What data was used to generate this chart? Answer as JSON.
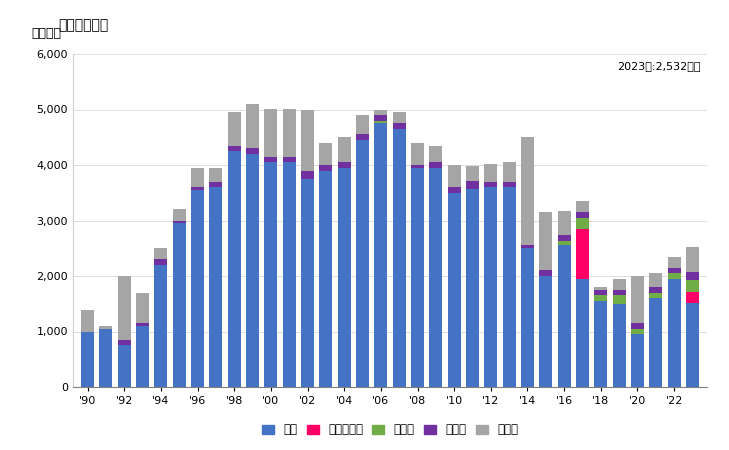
{
  "title": "輸入量の推移",
  "ylabel": "単位トン",
  "annotation": "2023年:2,532トン",
  "ylim": [
    0,
    6000
  ],
  "yticks": [
    0,
    1000,
    2000,
    3000,
    4000,
    5000,
    6000
  ],
  "years": [
    1990,
    1991,
    1992,
    1993,
    1994,
    1995,
    1996,
    1997,
    1998,
    1999,
    2000,
    2001,
    2002,
    2003,
    2004,
    2005,
    2006,
    2007,
    2008,
    2009,
    2010,
    2011,
    2012,
    2013,
    2014,
    2015,
    2016,
    2017,
    2018,
    2019,
    2020,
    2021,
    2022,
    2023
  ],
  "xtick_labels": [
    "'90",
    "'92",
    "'94",
    "'96",
    "'98",
    "'00",
    "'02",
    "'04",
    "'06",
    "'08",
    "'10",
    "'12",
    "'14",
    "'16",
    "'18",
    "'20",
    "'22"
  ],
  "xtick_positions": [
    1990,
    1992,
    1994,
    1996,
    1998,
    2000,
    2002,
    2004,
    2006,
    2008,
    2010,
    2012,
    2014,
    2016,
    2018,
    2020,
    2022
  ],
  "series": {
    "米国": [
      1000,
      1050,
      750,
      1100,
      2200,
      2950,
      3550,
      3600,
      4250,
      4200,
      4050,
      4050,
      3750,
      3900,
      3950,
      4450,
      4750,
      4650,
      3950,
      3950,
      3500,
      3560,
      3600,
      3600,
      2500,
      2000,
      2550,
      1950,
      1550,
      1500,
      950,
      1600,
      1950,
      1520
    ],
    "クウェート": [
      0,
      0,
      0,
      0,
      0,
      0,
      0,
      0,
      0,
      0,
      0,
      0,
      0,
      0,
      0,
      0,
      0,
      0,
      0,
      0,
      0,
      0,
      0,
      0,
      0,
      0,
      0,
      900,
      0,
      0,
      0,
      0,
      0,
      200
    ],
    "インド": [
      0,
      0,
      0,
      0,
      0,
      0,
      0,
      0,
      0,
      0,
      0,
      0,
      0,
      0,
      0,
      0,
      50,
      0,
      0,
      0,
      0,
      0,
      0,
      0,
      0,
      0,
      80,
      200,
      100,
      150,
      100,
      100,
      100,
      200
    ],
    "ドイツ": [
      0,
      0,
      100,
      50,
      100,
      50,
      50,
      100,
      100,
      100,
      100,
      100,
      150,
      100,
      100,
      100,
      100,
      100,
      50,
      100,
      100,
      150,
      100,
      100,
      50,
      100,
      100,
      100,
      100,
      100,
      100,
      100,
      100,
      150
    ],
    "その他": [
      380,
      50,
      1150,
      550,
      200,
      200,
      350,
      250,
      600,
      800,
      850,
      850,
      1100,
      400,
      450,
      350,
      100,
      200,
      400,
      300,
      400,
      280,
      310,
      350,
      1950,
      1050,
      450,
      200,
      50,
      200,
      850,
      250,
      200,
      450
    ]
  },
  "colors": {
    "米国": "#4472C4",
    "クウェート": "#FF0066",
    "インド": "#70AD47",
    "ドイツ": "#7030A0",
    "その他": "#A5A5A5"
  },
  "legend_order": [
    "米国",
    "クウェート",
    "インド",
    "ドイツ",
    "その他"
  ],
  "bar_width": 0.7,
  "background_color": "#FFFFFF",
  "plot_bg_color": "#FFFFFF",
  "title_fontsize": 10,
  "axis_fontsize": 9,
  "tick_fontsize": 8
}
